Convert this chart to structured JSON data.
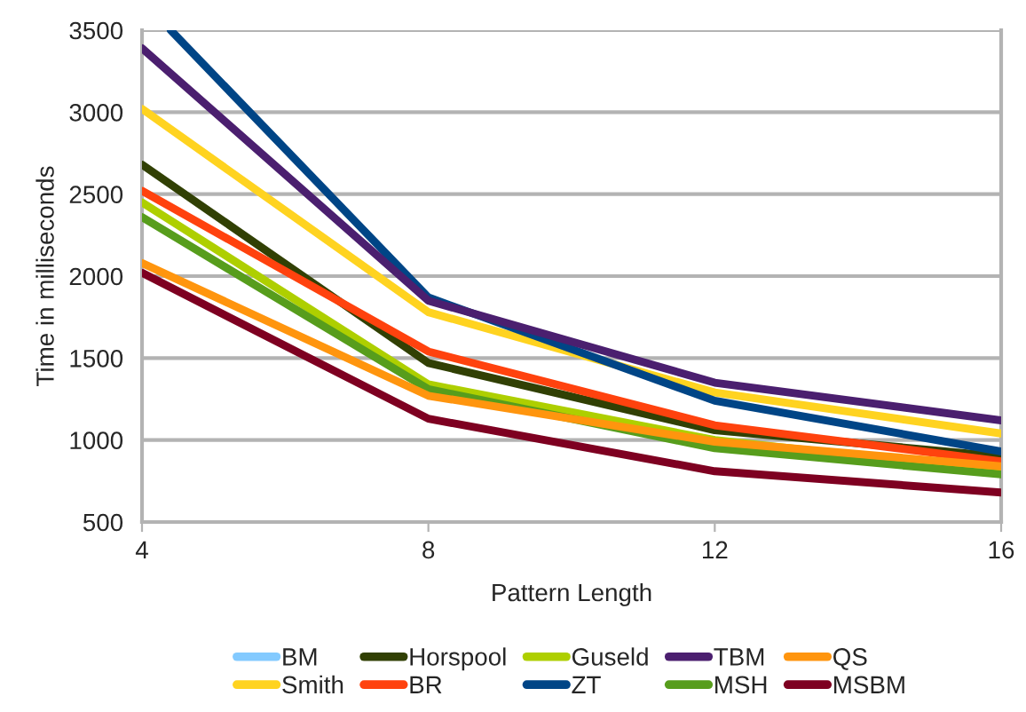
{
  "chart_data": {
    "type": "line",
    "xlabel": "Pattern Length",
    "ylabel": "Time in milliseconds",
    "x": [
      4,
      8,
      12,
      16
    ],
    "xlim": [
      4,
      16
    ],
    "xticks": [
      4,
      8,
      12,
      16
    ],
    "ylim": [
      500,
      3500
    ],
    "yticks": [
      500,
      1000,
      1500,
      2000,
      2500,
      3000,
      3500
    ],
    "grid": "y",
    "legend": "bottom",
    "marker": "none",
    "line_style": "solid",
    "series": [
      {
        "name": "BM",
        "color": "#83caff",
        "values": [
          null,
          null,
          null,
          null
        ]
      },
      {
        "name": "Smith",
        "color": "#ffd320",
        "values": [
          3020,
          1780,
          1290,
          1040
        ]
      },
      {
        "name": "Horspool",
        "color": "#314004",
        "values": [
          2680,
          1470,
          1060,
          900
        ]
      },
      {
        "name": "BR",
        "color": "#ff420e",
        "values": [
          2520,
          1540,
          1090,
          870
        ]
      },
      {
        "name": "Guseld",
        "color": "#aecf00",
        "values": [
          2450,
          1340,
          1000,
          810
        ]
      },
      {
        "name": "ZT",
        "color": "#004586",
        "x": [
          4.4,
          8,
          12,
          16
        ],
        "values": [
          3500,
          1870,
          1240,
          930
        ]
      },
      {
        "name": "TBM",
        "color": "#4b1f6f",
        "values": [
          3390,
          1850,
          1350,
          1120
        ]
      },
      {
        "name": "MSH",
        "color": "#579d1c",
        "values": [
          2360,
          1310,
          950,
          790
        ]
      },
      {
        "name": "QS",
        "color": "#ff950e",
        "values": [
          2080,
          1270,
          990,
          840
        ]
      },
      {
        "name": "MSBM",
        "color": "#7e0021",
        "values": [
          2020,
          1130,
          810,
          680
        ]
      }
    ]
  }
}
